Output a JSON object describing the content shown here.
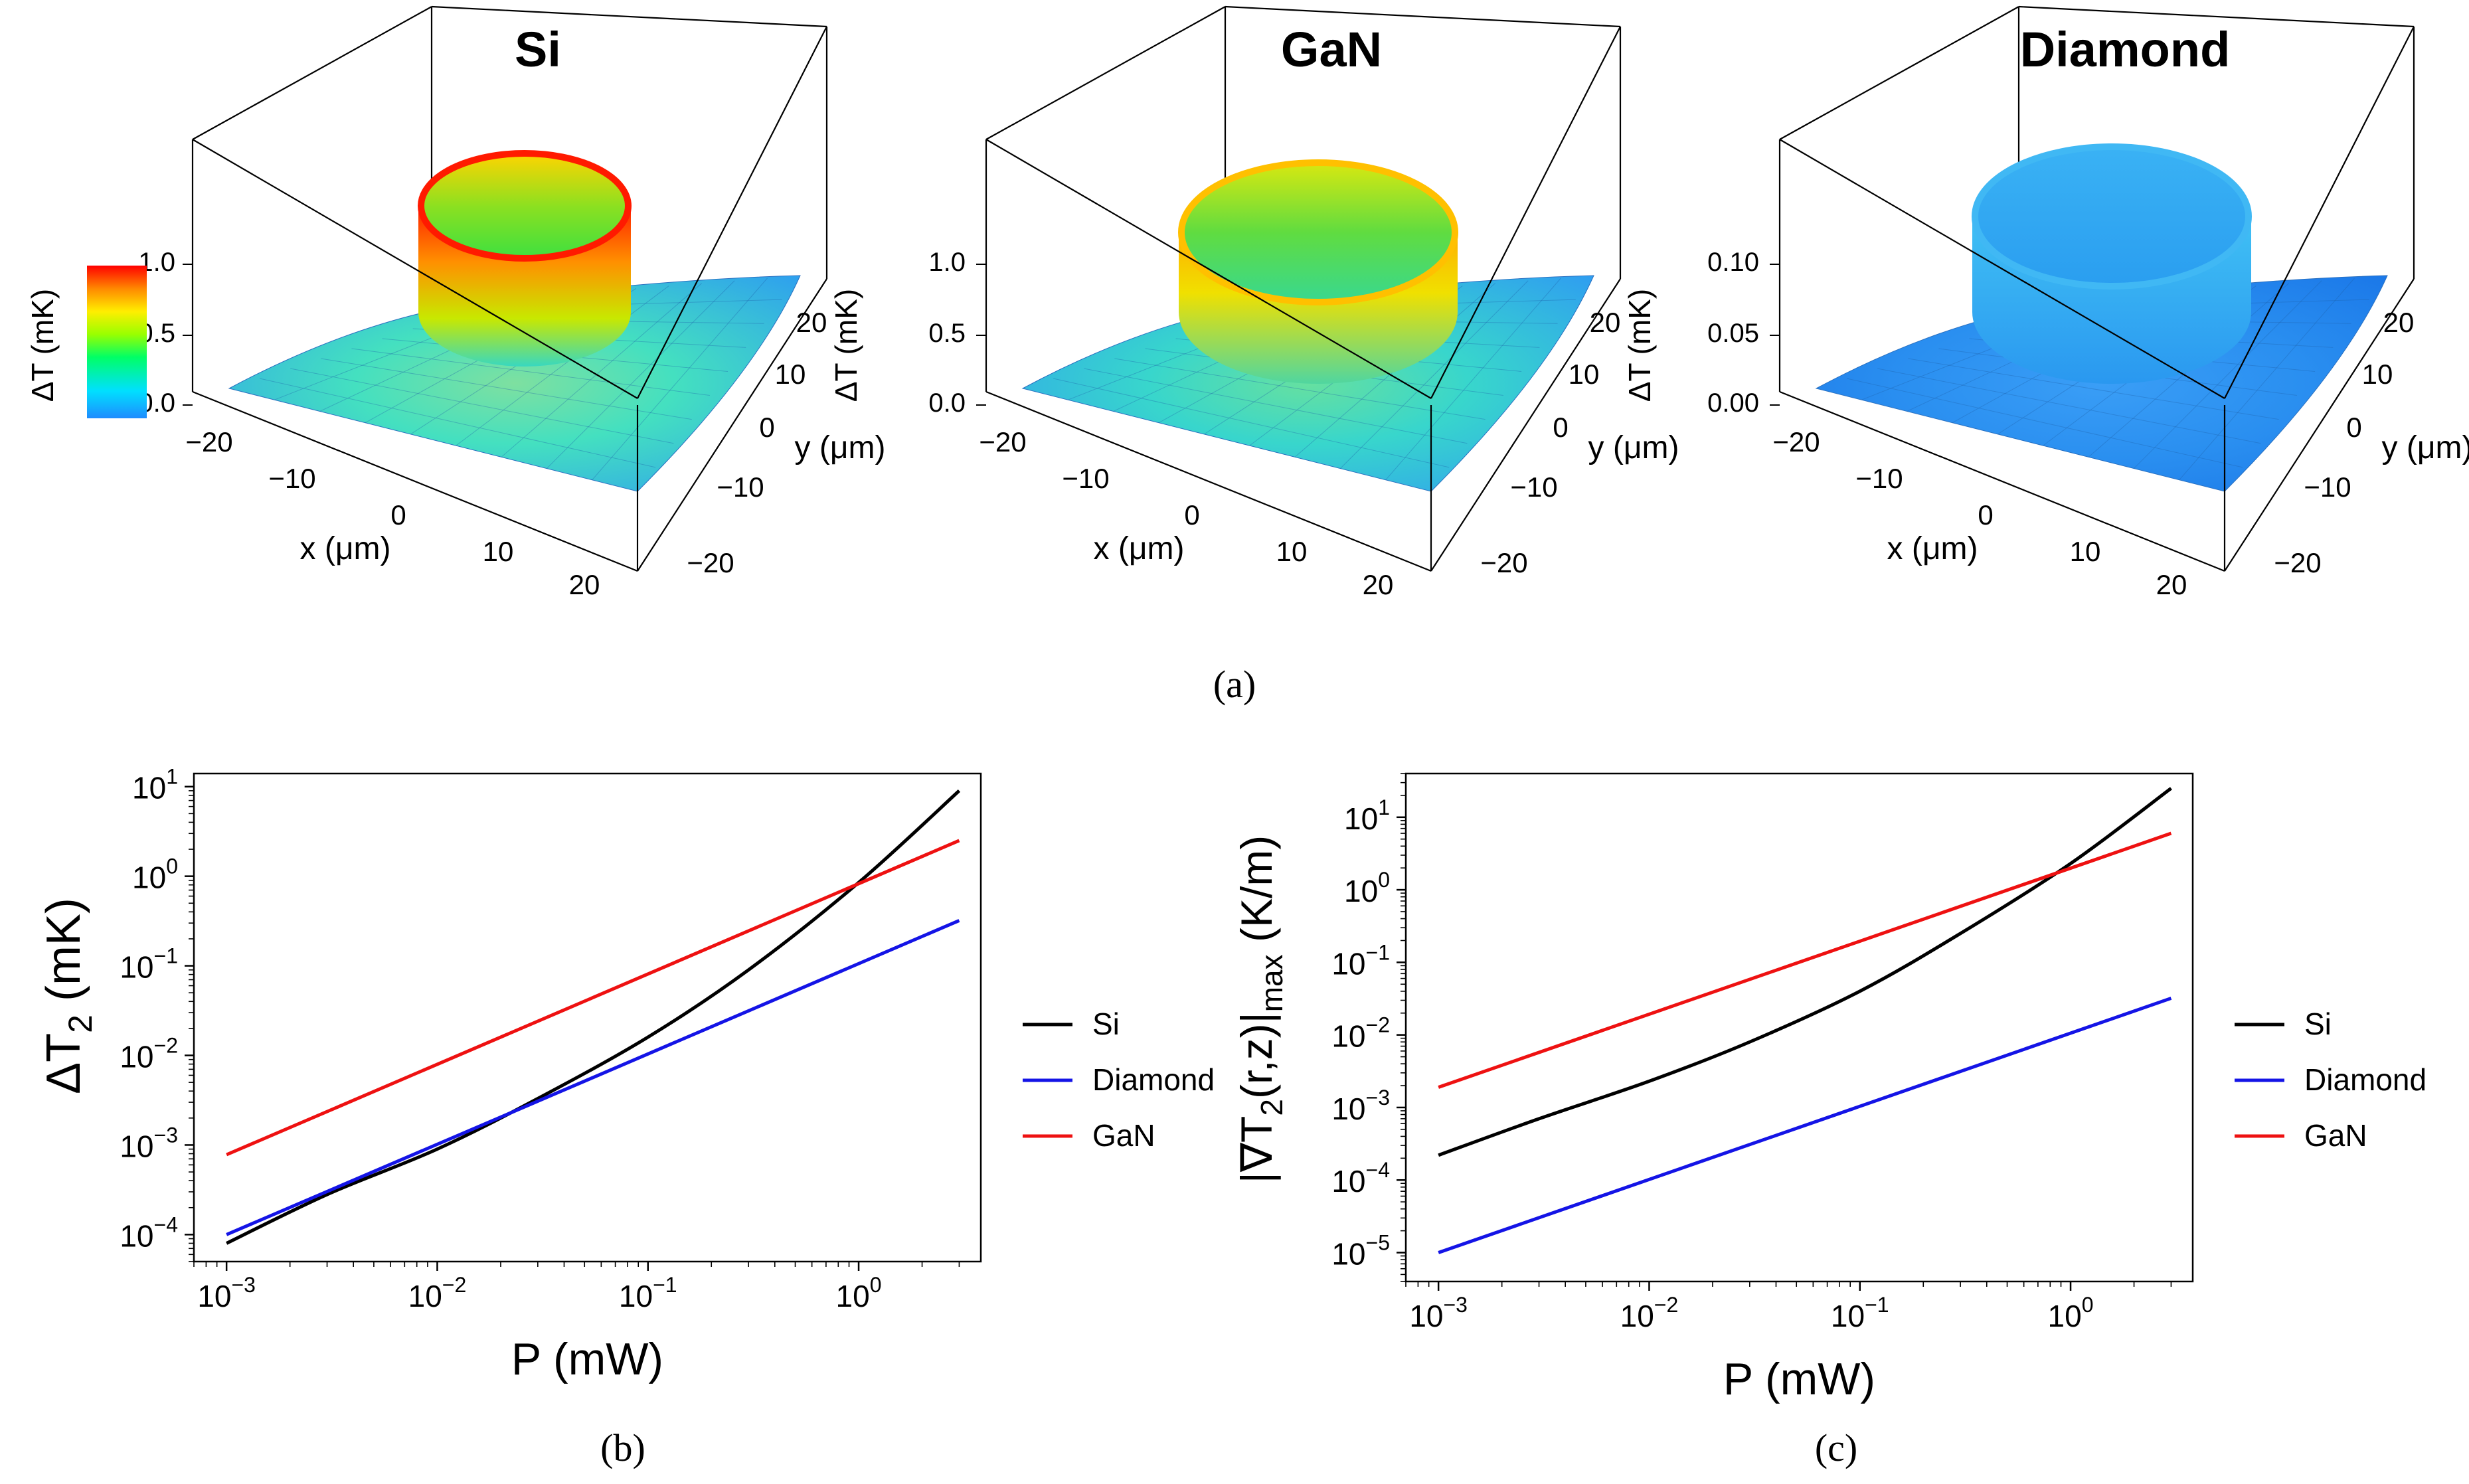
{
  "colors": {
    "si": "#000000",
    "diamond": "#1414e6",
    "gan": "#ee1111",
    "axis": "#000000",
    "colorbar": [
      "#1e8cff",
      "#00e0ff",
      "#00ff66",
      "#99ff00",
      "#ffee00",
      "#ff8800",
      "#ff0000"
    ]
  },
  "panel_a": {
    "label": "(a)",
    "axis_x_label": "x (μm)",
    "axis_y_label": "y (μm)",
    "axis_z_label": "ΔT (mK)",
    "plots": [
      {
        "title": "Si",
        "z_ticks": [
          "0.0",
          "0.5",
          "1.0"
        ],
        "ring_peak": 1.0,
        "base_level": 0.15,
        "x_ticks": [
          "−20",
          "−10",
          "0",
          "10",
          "20"
        ],
        "y_ticks": [
          "20",
          "10",
          "0",
          "−10",
          "−20"
        ]
      },
      {
        "title": "GaN",
        "z_ticks": [
          "0.0",
          "0.5",
          "1.0"
        ],
        "ring_peak": 0.75,
        "base_level": 0.12,
        "x_ticks": [
          "−20",
          "−10",
          "0",
          "10",
          "20"
        ],
        "y_ticks": [
          "20",
          "10",
          "0",
          "−10",
          "−20"
        ]
      },
      {
        "title": "Diamond",
        "z_ticks": [
          "0.00",
          "0.05",
          "0.10"
        ],
        "ring_peak": 0.09,
        "base_level": 0.02,
        "x_ticks": [
          "−20",
          "−10",
          "0",
          "10",
          "20"
        ],
        "y_ticks": [
          "20",
          "10",
          "0",
          "−10",
          "−20"
        ]
      }
    ]
  },
  "chart_data": [
    {
      "type": "line",
      "label": "(b)",
      "xlabel": "P (mW)",
      "ylabel": "ΔT",
      "ylabel_sub": "2",
      "ylabel_unit": " (mK)",
      "xscale": "log",
      "yscale": "log",
      "xlim": [
        0.0007,
        3.8
      ],
      "ylim": [
        5e-05,
        14
      ],
      "x_ticks": [
        0.001,
        0.01,
        0.1,
        1
      ],
      "x_tick_exps": [
        "−3",
        "−2",
        "−1",
        "0"
      ],
      "y_ticks": [
        0.0001,
        0.001,
        0.01,
        0.1,
        1,
        10
      ],
      "y_tick_exps": [
        "−4",
        "−3",
        "−2",
        "−1",
        "0",
        "1"
      ],
      "legend_position": "right",
      "series": [
        {
          "name": "Si",
          "color_key": "si",
          "x": [
            0.001,
            0.003,
            0.01,
            0.03,
            0.1,
            0.3,
            1,
            3
          ],
          "y": [
            8e-05,
            0.00028,
            0.0009,
            0.0033,
            0.016,
            0.09,
            0.85,
            9
          ]
        },
        {
          "name": "Diamond",
          "color_key": "diamond",
          "x": [
            0.001,
            3
          ],
          "y": [
            0.0001,
            0.32
          ]
        },
        {
          "name": "GaN",
          "color_key": "gan",
          "x": [
            0.001,
            3
          ],
          "y": [
            0.00078,
            2.5
          ]
        }
      ]
    },
    {
      "type": "line",
      "label": "(c)",
      "xlabel": "P (mW)",
      "ylabel": "|∇T",
      "ylabel_sub": "2",
      "ylabel_rest": "(r,z)|",
      "ylabel_sub2": "max",
      "ylabel_unit": " (K/m)",
      "xscale": "log",
      "yscale": "log",
      "xlim": [
        0.0007,
        3.8
      ],
      "ylim": [
        4e-06,
        40
      ],
      "x_ticks": [
        0.001,
        0.01,
        0.1,
        1
      ],
      "x_tick_exps": [
        "−3",
        "−2",
        "−1",
        "0"
      ],
      "y_ticks": [
        1e-05,
        0.0001,
        0.001,
        0.01,
        0.1,
        1,
        10
      ],
      "y_tick_exps": [
        "−5",
        "−4",
        "−3",
        "−2",
        "−1",
        "0",
        "1"
      ],
      "legend_position": "right",
      "series": [
        {
          "name": "Si",
          "color_key": "si",
          "x": [
            0.001,
            0.003,
            0.01,
            0.03,
            0.1,
            0.3,
            1,
            3
          ],
          "y": [
            0.00022,
            0.0007,
            0.0023,
            0.008,
            0.04,
            0.25,
            2.3,
            25
          ]
        },
        {
          "name": "Diamond",
          "color_key": "diamond",
          "x": [
            0.001,
            3
          ],
          "y": [
            1e-05,
            0.032
          ]
        },
        {
          "name": "GaN",
          "color_key": "gan",
          "x": [
            0.001,
            3
          ],
          "y": [
            0.0019,
            6
          ]
        }
      ]
    }
  ]
}
